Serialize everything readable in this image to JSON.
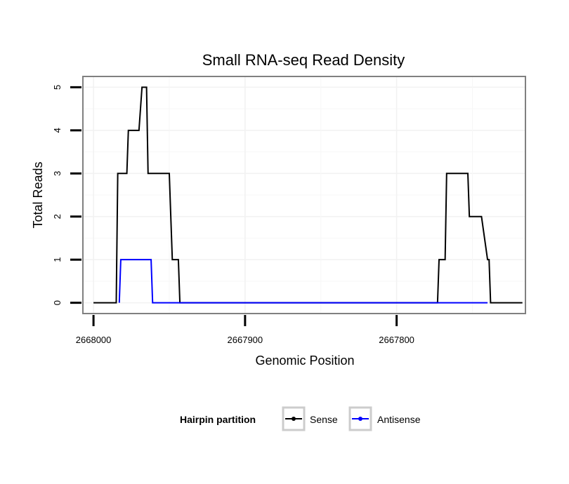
{
  "chart_data": {
    "type": "line",
    "title": "Small RNA-seq Read Density",
    "xlabel": "Genomic Position",
    "ylabel": "Total Reads",
    "x_reversed": true,
    "xlim": [
      2668007,
      2667715
    ],
    "ylim": [
      -0.25,
      5.25
    ],
    "x_ticks": [
      2668000,
      2667900,
      2667800
    ],
    "x_tick_labels": [
      "2668000",
      "2667900",
      "2667800"
    ],
    "y_ticks": [
      0,
      1,
      2,
      3,
      4,
      5
    ],
    "y_tick_labels": [
      "0",
      "1",
      "2",
      "3",
      "4",
      "5"
    ],
    "grid": true,
    "legend": {
      "title": "Hairpin partition",
      "position": "bottom",
      "entries": [
        "Sense",
        "Antisense"
      ]
    },
    "series": [
      {
        "name": "Sense",
        "color": "#000000",
        "x": [
          2668000,
          2667985,
          2667984,
          2667978,
          2667977,
          2667970,
          2667968,
          2667965,
          2667964,
          2667958,
          2667957,
          2667950,
          2667948,
          2667944,
          2667943,
          2667800,
          2667773,
          2667772,
          2667768,
          2667767,
          2667753,
          2667752,
          2667745,
          2667744,
          2667740,
          2667739,
          2667738,
          2667717
        ],
        "y": [
          0,
          0,
          3,
          3,
          4,
          4,
          5,
          5,
          3,
          3,
          3,
          3,
          1,
          1,
          0,
          0,
          0,
          1,
          1,
          3,
          3,
          2,
          2,
          2,
          1,
          1,
          0,
          0
        ]
      },
      {
        "name": "Antisense",
        "color": "#0000ff",
        "x": [
          2667983,
          2667982,
          2667962,
          2667961,
          2667944,
          2667740
        ],
        "y": [
          0,
          1,
          1,
          0,
          0,
          0
        ]
      }
    ]
  }
}
